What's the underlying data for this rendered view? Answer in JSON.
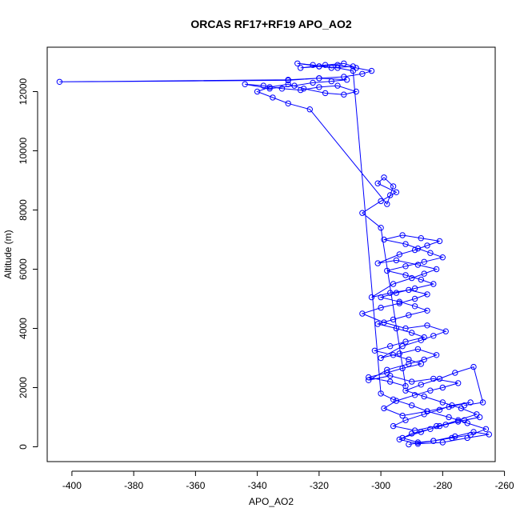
{
  "chart_data": {
    "type": "scatter",
    "title": "ORCAS RF17+RF19 APO_AO2",
    "xlabel": "APO_AO2",
    "ylabel": "Altitude (m)",
    "xlim": [
      -408,
      -263
    ],
    "ylim": [
      -500,
      13500
    ],
    "xticks": [
      -400,
      -380,
      -360,
      -340,
      -320,
      -300,
      -280,
      -260
    ],
    "yticks": [
      0,
      2000,
      4000,
      6000,
      8000,
      10000,
      12000
    ],
    "xtick_labels": [
      "-400",
      "-380",
      "-360",
      "-340",
      "-320",
      "-300",
      "-280",
      "-260"
    ],
    "ytick_labels": [
      "0",
      "2000",
      "4000",
      "6000",
      "8000",
      "10000",
      "12000"
    ],
    "grid": false,
    "series_color": "#0000FF",
    "marker": "open-circle",
    "connected": true,
    "series": [
      {
        "x": [
          -291,
          -283,
          -276,
          -270,
          -265,
          -272,
          -280,
          -288,
          -294,
          -290,
          -284,
          -279,
          -273,
          -268,
          -275,
          -282,
          -289,
          -296,
          -292,
          -286,
          -281,
          -277,
          -271,
          -278,
          -285,
          -293,
          -299,
          -295,
          -289,
          -284,
          -280,
          -275,
          -283,
          -290,
          -297,
          -304,
          -298,
          -291,
          -286,
          -282,
          -288,
          -294,
          -300,
          -293,
          -287,
          -283,
          -279,
          -285,
          -292,
          -299,
          -306,
          -300,
          -294,
          -289,
          -285,
          -291,
          -297,
          -303,
          -296,
          -290,
          -286,
          -282,
          -288,
          -295,
          -301,
          -294,
          -289,
          -285,
          -281,
          -287,
          -293,
          -299,
          -292,
          -288,
          -284,
          -280,
          -286,
          -292,
          -298,
          -292,
          -287,
          -283,
          -289,
          -295,
          -300,
          -294,
          -289,
          -285,
          -291,
          -296,
          -301,
          -295,
          -290,
          -286,
          -292,
          -297,
          -302,
          -296,
          -291,
          -287,
          -293,
          -298,
          -304,
          -297,
          -292,
          -300,
          -306,
          -300,
          -295,
          -301,
          -299,
          -296,
          -297,
          -298,
          -323,
          -330,
          -335,
          -340,
          -336,
          -330,
          -325,
          -318,
          -312,
          -308,
          -314,
          -320,
          -326,
          -332,
          -338,
          -344,
          -336,
          -328,
          -322,
          -316,
          -311,
          -320,
          -330,
          -404,
          -330,
          -320,
          -312,
          -306,
          -303,
          -308,
          -314,
          -320,
          -326,
          -318,
          -312,
          -309,
          -316,
          -322,
          -327,
          -320,
          -314,
          -309,
          -300,
          -296,
          -290,
          -285,
          -278,
          -272,
          -266,
          -271,
          -277,
          -283,
          -288,
          -293,
          -287,
          -281,
          -275,
          -269,
          -274,
          -280,
          -286,
          -292,
          -287,
          -281,
          -276,
          -270,
          -267,
          -273
        ],
        "y": [
          80,
          200,
          350,
          500,
          420,
          300,
          150,
          100,
          250,
          450,
          600,
          750,
          900,
          1000,
          850,
          700,
          550,
          700,
          900,
          1100,
          1250,
          1400,
          1500,
          1350,
          1200,
          1050,
          1300,
          1550,
          1750,
          1900,
          2000,
          2150,
          2300,
          2200,
          2400,
          2250,
          2600,
          2800,
          2950,
          3100,
          3300,
          3150,
          3000,
          3400,
          3600,
          3750,
          3900,
          4100,
          4000,
          4200,
          4500,
          4700,
          4850,
          5000,
          5150,
          5300,
          5200,
          5050,
          5500,
          5700,
          5850,
          6000,
          6150,
          6300,
          6200,
          6500,
          6650,
          6800,
          6950,
          7050,
          7150,
          7000,
          6850,
          6700,
          6550,
          6400,
          6250,
          6100,
          5950,
          5800,
          5650,
          5500,
          5350,
          5200,
          5050,
          4900,
          4750,
          4600,
          4450,
          4300,
          4150,
          4000,
          3850,
          3700,
          3550,
          3400,
          3250,
          3100,
          2950,
          2800,
          2650,
          2500,
          2350,
          2200,
          2050,
          7400,
          7900,
          8300,
          8600,
          8900,
          9100,
          8800,
          8500,
          8200,
          11400,
          11600,
          11800,
          12000,
          12150,
          12250,
          12100,
          11950,
          11900,
          12000,
          12200,
          12150,
          12050,
          12100,
          12200,
          12250,
          12100,
          12200,
          12300,
          12350,
          12400,
          12450,
          12400,
          12330,
          12380,
          12450,
          12500,
          12600,
          12700,
          12800,
          12900,
          12850,
          12800,
          12900,
          12950,
          12850,
          12800,
          12900,
          12950,
          12850,
          12800,
          12700,
          1800,
          1600,
          1400,
          1200,
          1000,
          800,
          600,
          400,
          300,
          200,
          150,
          300,
          500,
          700,
          900,
          1100,
          1300,
          1500,
          1700,
          1900,
          2100,
          2300,
          2500,
          2700,
          1500,
          1400
        ]
      }
    ]
  }
}
